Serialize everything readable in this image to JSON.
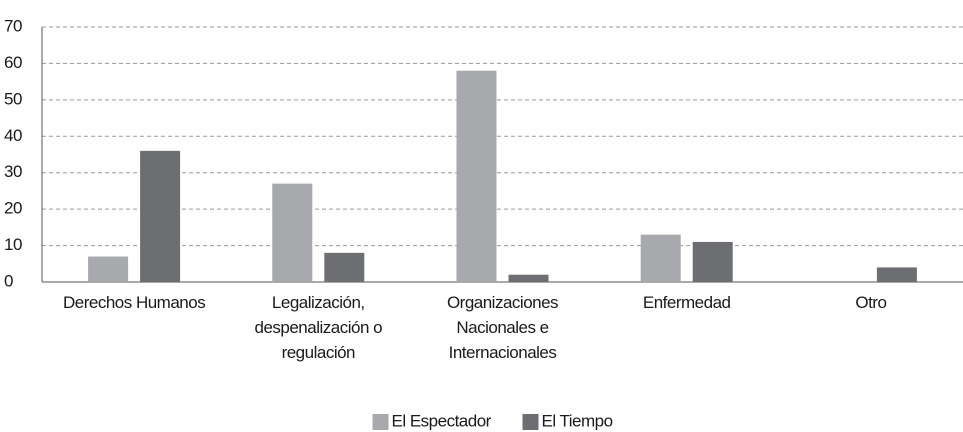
{
  "chart_data": {
    "type": "bar",
    "categories": [
      "Derechos Humanos",
      "Legalización, despenalización o regulación",
      "Organizaciones Nacionales e Internacionales",
      "Enfermedad",
      "Otro"
    ],
    "series": [
      {
        "name": "El Espectador",
        "color": "#a7a9ac",
        "values": [
          7,
          27,
          58,
          13,
          0
        ]
      },
      {
        "name": "El Tiempo",
        "color": "#6d6e71",
        "values": [
          36,
          8,
          2,
          11,
          4
        ]
      }
    ],
    "ylim": [
      0,
      70
    ],
    "yticks": [
      0,
      10,
      20,
      30,
      40,
      50,
      60,
      70
    ],
    "grid": true,
    "legend": "bottom"
  }
}
